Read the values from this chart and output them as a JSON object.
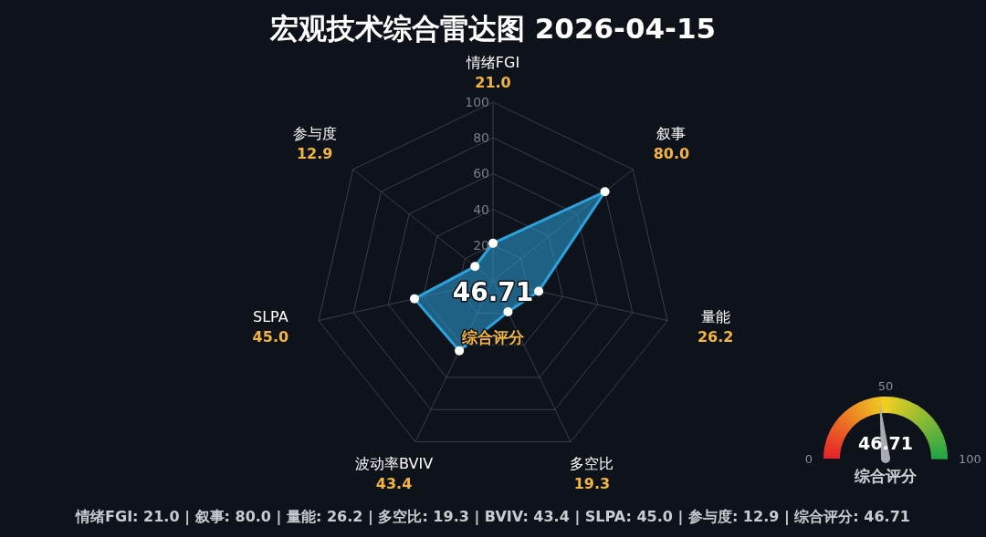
{
  "chart_data": [
    {
      "type": "radar",
      "title": "宏观技术综合雷达图 2026-04-15",
      "categories": [
        "情绪FGI",
        "叙事",
        "量能",
        "多空比",
        "波动率BVIV",
        "SLPA",
        "参与度"
      ],
      "series": [
        {
          "color": "#2ba3dc",
          "values": [
            21.0,
            80.0,
            26.2,
            19.3,
            43.4,
            45.0,
            12.9
          ]
        }
      ],
      "value_labels": [
        "21.0",
        "80.0",
        "26.2",
        "19.3",
        "43.4",
        "45.0",
        "12.9"
      ],
      "ylim": [
        0,
        100
      ],
      "yticks": [
        20,
        40,
        60,
        80,
        100
      ],
      "grid": true,
      "marker": "circle",
      "annotations": [
        "46.71",
        "综合评分",
        "情绪FGI: 21.0 | 叙事: 80.0 | 量能: 26.2 | 多空比: 19.3 | BVIV: 43.4 | SLPA: 45.0 | 参与度: 12.9 | 综合评分: 46.71"
      ]
    },
    {
      "type": "other",
      "title": "综合评分",
      "values": [
        46.71
      ],
      "data_labels": true,
      "annotations": [
        "0",
        "50",
        "100"
      ]
    }
  ]
}
